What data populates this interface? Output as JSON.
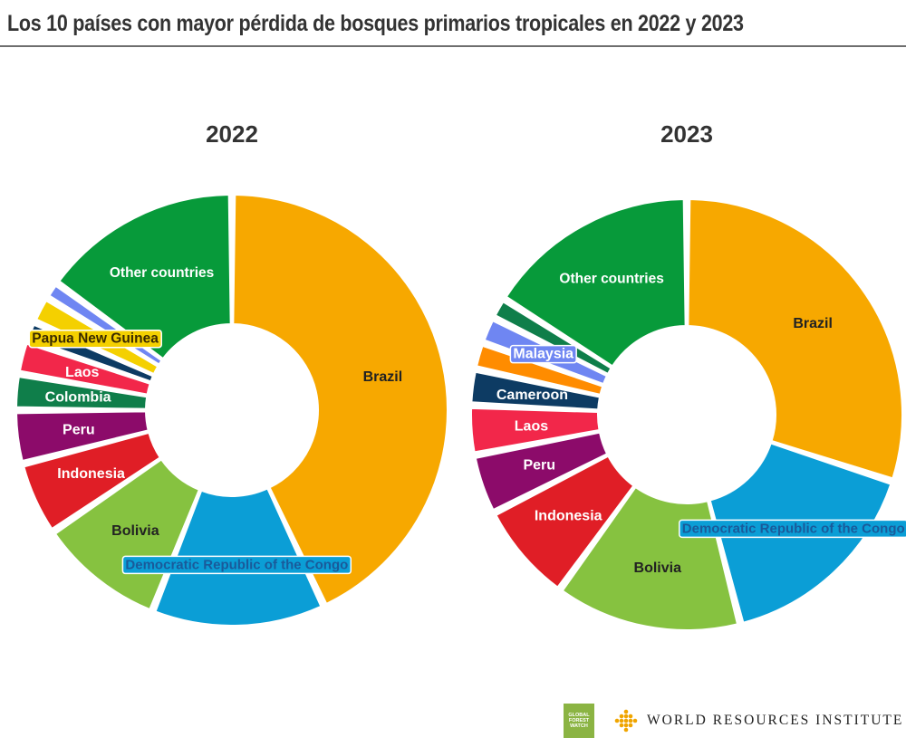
{
  "page": {
    "title": "Los 10 países con mayor pérdida de bosques primarios tropicales en 2022 y 2023"
  },
  "chart_data": [
    {
      "type": "pie",
      "variant": "donut",
      "title": "2022",
      "unit": "share of tropical primary forest loss (%)",
      "slices": [
        {
          "label": "Brazil",
          "value": 43.0,
          "color": "#f7a800",
          "label_style": "plain",
          "label_color": "#222222"
        },
        {
          "label": "Democratic Republic of the Congo",
          "value": 13.0,
          "color": "#0b9ed6",
          "label_style": "badge",
          "label_color": "#1a5a9a"
        },
        {
          "label": "Bolivia",
          "value": 9.5,
          "color": "#86c240",
          "label_style": "plain",
          "label_color": "#222222"
        },
        {
          "label": "Indonesia",
          "value": 5.5,
          "color": "#e01e26",
          "label_style": "plain",
          "label_color": "#ffffff"
        },
        {
          "label": "Peru",
          "value": 4.0,
          "color": "#8c0b6a",
          "label_style": "plain",
          "label_color": "#ffffff"
        },
        {
          "label": "Colombia",
          "value": 2.7,
          "color": "#0f7e4a",
          "label_style": "plain",
          "label_color": "#ffffff"
        },
        {
          "label": "Laos",
          "value": 2.5,
          "color": "#f2274a",
          "label_style": "plain",
          "label_color": "#ffffff"
        },
        {
          "label": "",
          "value": 1.5,
          "color": "#0d3b63",
          "label_style": "none",
          "label_color": "#ffffff"
        },
        {
          "label": "Papua New Guinea",
          "value": 2.0,
          "color": "#f4d000",
          "label_style": "badge",
          "label_color": "#3a2a00"
        },
        {
          "label": "",
          "value": 1.3,
          "color": "#6f86f2",
          "label_style": "none",
          "label_color": "#ffffff"
        },
        {
          "label": "Other countries",
          "value": 15.0,
          "color": "#079a3a",
          "label_style": "plain",
          "label_color": "#ffffff"
        }
      ]
    },
    {
      "type": "pie",
      "variant": "donut",
      "title": "2023",
      "unit": "share of tropical primary forest loss (%)",
      "slices": [
        {
          "label": "Brazil",
          "value": 30.0,
          "color": "#f7a800",
          "label_style": "plain",
          "label_color": "#222222"
        },
        {
          "label": "Democratic Republic of the Congo",
          "value": 16.0,
          "color": "#0b9ed6",
          "label_style": "badge",
          "label_color": "#1a5a9a"
        },
        {
          "label": "Bolivia",
          "value": 14.0,
          "color": "#86c240",
          "label_style": "plain",
          "label_color": "#222222"
        },
        {
          "label": "Indonesia",
          "value": 7.5,
          "color": "#e01e26",
          "label_style": "plain",
          "label_color": "#ffffff"
        },
        {
          "label": "Peru",
          "value": 4.5,
          "color": "#8c0b6a",
          "label_style": "plain",
          "label_color": "#ffffff"
        },
        {
          "label": "Laos",
          "value": 3.7,
          "color": "#f2274a",
          "label_style": "plain",
          "label_color": "#ffffff"
        },
        {
          "label": "Cameroon",
          "value": 2.7,
          "color": "#0d3b63",
          "label_style": "plain",
          "label_color": "#ffffff"
        },
        {
          "label": "",
          "value": 2.0,
          "color": "#ff8c00",
          "label_style": "none",
          "label_color": "#ffffff"
        },
        {
          "label": "Malaysia",
          "value": 2.0,
          "color": "#6f86f2",
          "label_style": "badge",
          "label_color": "#ffffff"
        },
        {
          "label": "",
          "value": 1.6,
          "color": "#0f7e4a",
          "label_style": "none",
          "label_color": "#ffffff"
        },
        {
          "label": "Other countries",
          "value": 16.0,
          "color": "#079a3a",
          "label_style": "plain",
          "label_color": "#ffffff"
        }
      ]
    }
  ],
  "footer": {
    "gfw_logo_text": "GLOBAL FOREST WATCH",
    "wri_text": "WORLD RESOURCES INSTITUTE"
  }
}
